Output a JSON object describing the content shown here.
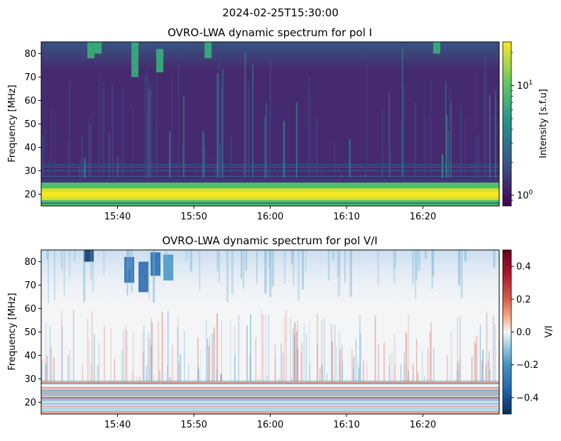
{
  "figure": {
    "suptitle": "2024-02-25T15:30:00"
  },
  "chart_data": [
    {
      "type": "heatmap",
      "title": "OVRO-LWA dynamic spectrum for pol I",
      "xlabel": "",
      "ylabel": "Frequency [MHz]",
      "x_ticks": [
        "15:40",
        "15:50",
        "16:00",
        "16:10",
        "16:20"
      ],
      "y_ticks": [
        20,
        30,
        40,
        50,
        60,
        70,
        80
      ],
      "xlim": [
        "15:30",
        "16:30"
      ],
      "ylim": [
        15,
        85
      ],
      "colormap": "viridis",
      "color_scale": "log",
      "colorbar": {
        "label": "Intensity [s.f.u]",
        "range": [
          0.8,
          25
        ],
        "tick_labels": [
          {
            "value": 1,
            "base": "10",
            "exp": "0"
          },
          {
            "value": 10,
            "base": "10",
            "exp": "1"
          }
        ]
      }
    },
    {
      "type": "heatmap",
      "title": "OVRO-LWA dynamic spectrum for pol V/I",
      "xlabel": "",
      "ylabel": "Frequency [MHz]",
      "x_ticks": [
        "15:40",
        "15:50",
        "16:00",
        "16:10",
        "16:20"
      ],
      "y_ticks": [
        20,
        30,
        40,
        50,
        60,
        70,
        80
      ],
      "xlim": [
        "15:30",
        "16:30"
      ],
      "ylim": [
        15,
        85
      ],
      "colormap": "RdBu_r",
      "color_scale": "linear",
      "colorbar": {
        "label": "V/I",
        "range": [
          -0.5,
          0.5
        ],
        "tick_labels": [
          "0.4",
          "0.2",
          "0.0",
          "−0.2",
          "−0.4"
        ]
      }
    }
  ]
}
